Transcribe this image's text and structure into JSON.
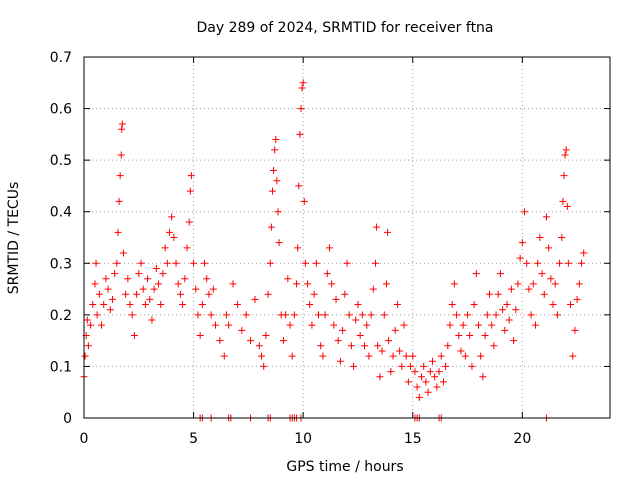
{
  "chart_data": {
    "type": "scatter",
    "title": "Day 289 of 2024, SRMTID for receiver ftna",
    "xlabel": "GPS time / hours",
    "ylabel": "SRMTID / TECUs",
    "xlim": [
      0,
      24
    ],
    "ylim": [
      0,
      0.7
    ],
    "x_ticks": [
      0,
      5,
      10,
      15,
      20
    ],
    "x_tick_labels": [
      "0",
      "5",
      "10",
      "15",
      "20"
    ],
    "y_ticks": [
      0,
      0.1,
      0.2,
      0.3,
      0.4,
      0.5,
      0.6,
      0.7
    ],
    "y_tick_labels": [
      "0",
      "0.1",
      "0.2",
      "0.3",
      "0.4",
      "0.5",
      "0.6",
      "0.7"
    ],
    "grid": true,
    "marker": "plus",
    "series_color": "#ff0000",
    "series": [
      {
        "name": "SRMTID",
        "description": "Representative samples of the plotted point cloud (hour, TECU)",
        "points": [
          [
            0.0,
            0.08
          ],
          [
            0.05,
            0.12
          ],
          [
            0.1,
            0.16
          ],
          [
            0.15,
            0.19
          ],
          [
            0.2,
            0.14
          ],
          [
            0.3,
            0.18
          ],
          [
            0.4,
            0.22
          ],
          [
            0.5,
            0.26
          ],
          [
            0.55,
            0.3
          ],
          [
            0.6,
            0.2
          ],
          [
            0.7,
            0.24
          ],
          [
            0.8,
            0.18
          ],
          [
            0.9,
            0.22
          ],
          [
            1.0,
            0.27
          ],
          [
            1.1,
            0.25
          ],
          [
            1.2,
            0.21
          ],
          [
            1.3,
            0.23
          ],
          [
            1.4,
            0.28
          ],
          [
            1.5,
            0.3
          ],
          [
            1.55,
            0.36
          ],
          [
            1.6,
            0.42
          ],
          [
            1.65,
            0.47
          ],
          [
            1.7,
            0.51
          ],
          [
            1.72,
            0.56
          ],
          [
            1.75,
            0.57
          ],
          [
            1.8,
            0.32
          ],
          [
            1.9,
            0.24
          ],
          [
            2.0,
            0.27
          ],
          [
            2.1,
            0.22
          ],
          [
            2.2,
            0.2
          ],
          [
            2.3,
            0.16
          ],
          [
            2.4,
            0.24
          ],
          [
            2.5,
            0.28
          ],
          [
            2.6,
            0.3
          ],
          [
            2.7,
            0.25
          ],
          [
            2.8,
            0.22
          ],
          [
            2.9,
            0.27
          ],
          [
            3.0,
            0.23
          ],
          [
            3.1,
            0.19
          ],
          [
            3.2,
            0.25
          ],
          [
            3.3,
            0.29
          ],
          [
            3.4,
            0.26
          ],
          [
            3.5,
            0.22
          ],
          [
            3.6,
            0.28
          ],
          [
            3.7,
            0.33
          ],
          [
            3.8,
            0.3
          ],
          [
            3.9,
            0.36
          ],
          [
            4.0,
            0.39
          ],
          [
            4.1,
            0.35
          ],
          [
            4.2,
            0.3
          ],
          [
            4.3,
            0.26
          ],
          [
            4.4,
            0.24
          ],
          [
            4.5,
            0.22
          ],
          [
            4.6,
            0.27
          ],
          [
            4.7,
            0.33
          ],
          [
            4.8,
            0.38
          ],
          [
            4.85,
            0.44
          ],
          [
            4.9,
            0.47
          ],
          [
            5.0,
            0.3
          ],
          [
            5.1,
            0.25
          ],
          [
            5.2,
            0.2
          ],
          [
            5.3,
            0.16
          ],
          [
            5.4,
            0.22
          ],
          [
            5.5,
            0.3
          ],
          [
            5.6,
            0.27
          ],
          [
            5.7,
            0.24
          ],
          [
            5.8,
            0.2
          ],
          [
            5.9,
            0.25
          ],
          [
            6.0,
            0.18
          ],
          [
            6.2,
            0.15
          ],
          [
            6.4,
            0.12
          ],
          [
            6.5,
            0.2
          ],
          [
            6.6,
            0.18
          ],
          [
            6.8,
            0.26
          ],
          [
            7.0,
            0.22
          ],
          [
            7.2,
            0.17
          ],
          [
            7.4,
            0.2
          ],
          [
            7.6,
            0.15
          ],
          [
            7.8,
            0.23
          ],
          [
            8.0,
            0.14
          ],
          [
            8.1,
            0.12
          ],
          [
            8.2,
            0.1
          ],
          [
            8.3,
            0.16
          ],
          [
            8.4,
            0.24
          ],
          [
            8.5,
            0.3
          ],
          [
            8.55,
            0.37
          ],
          [
            8.6,
            0.44
          ],
          [
            8.65,
            0.48
          ],
          [
            8.7,
            0.52
          ],
          [
            8.75,
            0.54
          ],
          [
            8.8,
            0.46
          ],
          [
            8.85,
            0.4
          ],
          [
            8.9,
            0.34
          ],
          [
            9.0,
            0.2
          ],
          [
            9.1,
            0.15
          ],
          [
            9.2,
            0.2
          ],
          [
            9.3,
            0.27
          ],
          [
            9.4,
            0.18
          ],
          [
            9.5,
            0.12
          ],
          [
            9.6,
            0.2
          ],
          [
            9.7,
            0.26
          ],
          [
            9.75,
            0.33
          ],
          [
            9.8,
            0.45
          ],
          [
            9.85,
            0.55
          ],
          [
            9.9,
            0.6
          ],
          [
            9.95,
            0.64
          ],
          [
            10.0,
            0.65
          ],
          [
            10.05,
            0.42
          ],
          [
            10.1,
            0.3
          ],
          [
            10.2,
            0.26
          ],
          [
            10.3,
            0.22
          ],
          [
            10.4,
            0.18
          ],
          [
            10.5,
            0.24
          ],
          [
            10.6,
            0.3
          ],
          [
            10.7,
            0.2
          ],
          [
            10.8,
            0.14
          ],
          [
            10.9,
            0.12
          ],
          [
            11.0,
            0.2
          ],
          [
            11.1,
            0.28
          ],
          [
            11.2,
            0.33
          ],
          [
            11.3,
            0.26
          ],
          [
            11.4,
            0.18
          ],
          [
            11.5,
            0.23
          ],
          [
            11.6,
            0.15
          ],
          [
            11.7,
            0.11
          ],
          [
            11.8,
            0.17
          ],
          [
            11.9,
            0.24
          ],
          [
            12.0,
            0.3
          ],
          [
            12.1,
            0.2
          ],
          [
            12.2,
            0.14
          ],
          [
            12.3,
            0.1
          ],
          [
            12.4,
            0.19
          ],
          [
            12.5,
            0.22
          ],
          [
            12.6,
            0.16
          ],
          [
            12.7,
            0.2
          ],
          [
            12.8,
            0.14
          ],
          [
            12.9,
            0.18
          ],
          [
            13.0,
            0.12
          ],
          [
            13.1,
            0.2
          ],
          [
            13.2,
            0.25
          ],
          [
            13.3,
            0.3
          ],
          [
            13.35,
            0.37
          ],
          [
            13.4,
            0.14
          ],
          [
            13.5,
            0.08
          ],
          [
            13.6,
            0.13
          ],
          [
            13.7,
            0.2
          ],
          [
            13.8,
            0.26
          ],
          [
            13.85,
            0.36
          ],
          [
            13.9,
            0.15
          ],
          [
            14.0,
            0.09
          ],
          [
            14.1,
            0.12
          ],
          [
            14.2,
            0.17
          ],
          [
            14.3,
            0.22
          ],
          [
            14.4,
            0.13
          ],
          [
            14.5,
            0.1
          ],
          [
            14.6,
            0.18
          ],
          [
            14.7,
            0.12
          ],
          [
            14.8,
            0.07
          ],
          [
            14.9,
            0.1
          ],
          [
            15.0,
            0.12
          ],
          [
            15.1,
            0.09
          ],
          [
            15.2,
            0.06
          ],
          [
            15.3,
            0.04
          ],
          [
            15.4,
            0.08
          ],
          [
            15.5,
            0.1
          ],
          [
            15.6,
            0.07
          ],
          [
            15.7,
            0.05
          ],
          [
            15.8,
            0.09
          ],
          [
            15.9,
            0.11
          ],
          [
            16.0,
            0.08
          ],
          [
            16.1,
            0.06
          ],
          [
            16.2,
            0.09
          ],
          [
            16.3,
            0.12
          ],
          [
            16.4,
            0.07
          ],
          [
            16.5,
            0.1
          ],
          [
            16.6,
            0.14
          ],
          [
            16.7,
            0.18
          ],
          [
            16.8,
            0.22
          ],
          [
            16.9,
            0.26
          ],
          [
            17.0,
            0.2
          ],
          [
            17.1,
            0.16
          ],
          [
            17.2,
            0.13
          ],
          [
            17.3,
            0.18
          ],
          [
            17.4,
            0.12
          ],
          [
            17.5,
            0.2
          ],
          [
            17.6,
            0.16
          ],
          [
            17.7,
            0.1
          ],
          [
            17.8,
            0.22
          ],
          [
            17.9,
            0.28
          ],
          [
            18.0,
            0.18
          ],
          [
            18.1,
            0.12
          ],
          [
            18.2,
            0.08
          ],
          [
            18.3,
            0.16
          ],
          [
            18.4,
            0.2
          ],
          [
            18.5,
            0.24
          ],
          [
            18.6,
            0.18
          ],
          [
            18.7,
            0.14
          ],
          [
            18.8,
            0.2
          ],
          [
            18.9,
            0.24
          ],
          [
            19.0,
            0.28
          ],
          [
            19.1,
            0.21
          ],
          [
            19.2,
            0.17
          ],
          [
            19.3,
            0.22
          ],
          [
            19.4,
            0.19
          ],
          [
            19.5,
            0.25
          ],
          [
            19.6,
            0.15
          ],
          [
            19.7,
            0.21
          ],
          [
            19.8,
            0.26
          ],
          [
            19.9,
            0.31
          ],
          [
            20.0,
            0.34
          ],
          [
            20.1,
            0.4
          ],
          [
            20.2,
            0.3
          ],
          [
            20.3,
            0.25
          ],
          [
            20.4,
            0.2
          ],
          [
            20.5,
            0.26
          ],
          [
            20.6,
            0.18
          ],
          [
            20.7,
            0.3
          ],
          [
            20.8,
            0.35
          ],
          [
            20.9,
            0.28
          ],
          [
            21.0,
            0.24
          ],
          [
            21.1,
            0.39
          ],
          [
            21.2,
            0.33
          ],
          [
            21.3,
            0.27
          ],
          [
            21.4,
            0.22
          ],
          [
            21.5,
            0.26
          ],
          [
            21.6,
            0.2
          ],
          [
            21.7,
            0.3
          ],
          [
            21.8,
            0.35
          ],
          [
            21.85,
            0.42
          ],
          [
            21.9,
            0.47
          ],
          [
            21.95,
            0.51
          ],
          [
            22.0,
            0.52
          ],
          [
            22.05,
            0.41
          ],
          [
            22.1,
            0.3
          ],
          [
            22.2,
            0.22
          ],
          [
            22.3,
            0.12
          ],
          [
            22.4,
            0.17
          ],
          [
            22.5,
            0.23
          ],
          [
            22.6,
            0.26
          ],
          [
            22.7,
            0.3
          ],
          [
            22.8,
            0.32
          ]
        ],
        "zero_points": [
          5.3,
          5.4,
          5.8,
          6.6,
          6.7,
          7.6,
          8.4,
          8.5,
          9.4,
          9.5,
          9.6,
          9.7,
          9.9,
          15.1,
          15.2,
          15.3,
          16.2,
          16.3,
          21.1
        ]
      }
    ]
  }
}
